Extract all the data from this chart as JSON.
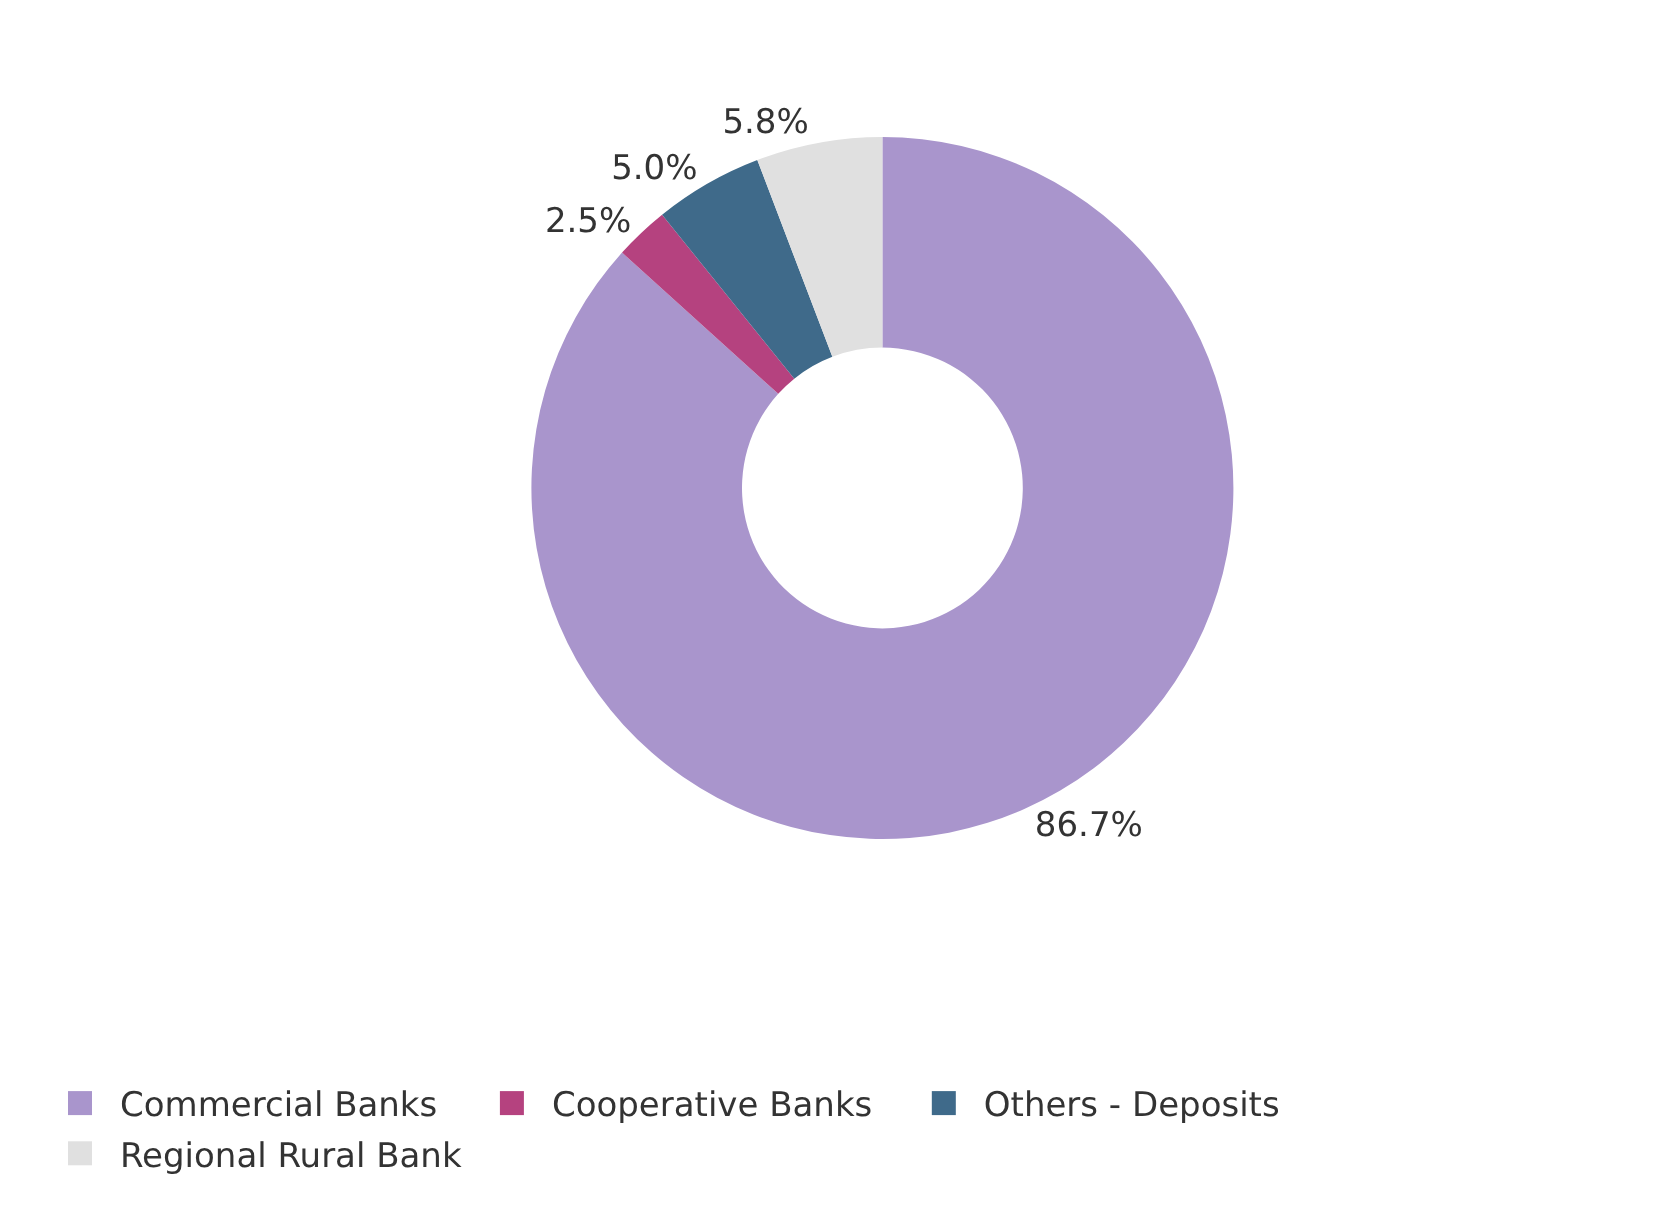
{
  "chart_data": {
    "type": "donut",
    "categories": [
      "Commercial Banks",
      "Cooperative Banks",
      "Others - Deposits",
      "Regional Rural Bank"
    ],
    "values": [
      86.7,
      2.5,
      5.0,
      5.8
    ],
    "colors": [
      "#a995cc",
      "#b5427f",
      "#3f6a8a",
      "#e0e0e0"
    ],
    "value_labels": [
      "86.7%",
      "2.5%",
      "5.0%",
      "5.8%"
    ],
    "legend": "bottom"
  }
}
